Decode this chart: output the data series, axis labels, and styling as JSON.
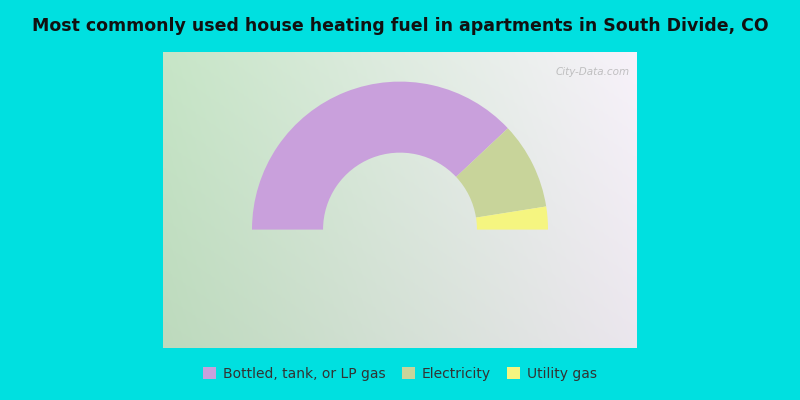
{
  "title": "Most commonly used house heating fuel in apartments in South Divide, CO",
  "title_fontsize": 12.5,
  "background_color_outer": "#00e0e0",
  "segments": [
    {
      "label": "Bottled, tank, or LP gas",
      "value": 76,
      "color": "#c9a0dc"
    },
    {
      "label": "Electricity",
      "value": 19,
      "color": "#c8d49a"
    },
    {
      "label": "Utility gas",
      "value": 5,
      "color": "#f5f580"
    }
  ],
  "legend_fontsize": 10,
  "watermark": "City-Data.com",
  "chart_bg_left": "#b8ddb8",
  "chart_bg_right": "#f0e8f4",
  "chart_bg_center": "#e8f4e8"
}
